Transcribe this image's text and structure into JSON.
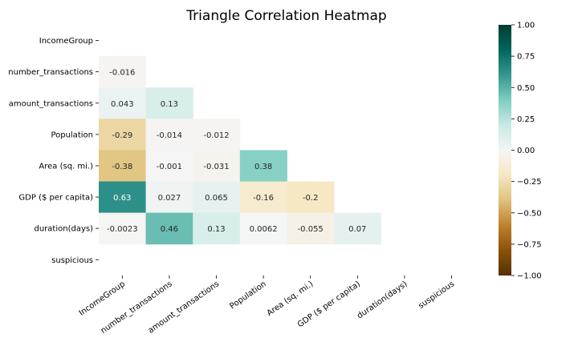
{
  "chart_data": {
    "type": "heatmap",
    "title": "Triangle Correlation Heatmap",
    "rows": [
      "IncomeGroup",
      "number_transactions",
      "amount_transactions",
      "Population",
      "Area (sq. mi.)",
      "GDP ($ per capita)",
      "duration(days)",
      "suspicious"
    ],
    "columns": [
      "IncomeGroup",
      "number_transactions",
      "amount_transactions",
      "Population",
      "Area (sq. mi.)",
      "GDP ($ per capita)",
      "duration(days)",
      "suspicious"
    ],
    "values": [
      [
        null,
        null,
        null,
        null,
        null,
        null,
        null,
        null
      ],
      [
        -0.016,
        null,
        null,
        null,
        null,
        null,
        null,
        null
      ],
      [
        0.043,
        0.13,
        null,
        null,
        null,
        null,
        null,
        null
      ],
      [
        -0.29,
        -0.014,
        -0.012,
        null,
        null,
        null,
        null,
        null
      ],
      [
        -0.38,
        -0.001,
        -0.031,
        0.38,
        null,
        null,
        null,
        null
      ],
      [
        0.63,
        0.027,
        0.065,
        -0.16,
        -0.2,
        null,
        null,
        null
      ],
      [
        -0.0023,
        0.46,
        0.13,
        0.0062,
        -0.055,
        0.07,
        null,
        null
      ],
      [
        null,
        null,
        null,
        null,
        null,
        null,
        null,
        null
      ]
    ],
    "cell_labels": [
      [
        null,
        null,
        null,
        null,
        null,
        null,
        null,
        null
      ],
      [
        "-0.016",
        null,
        null,
        null,
        null,
        null,
        null,
        null
      ],
      [
        "0.043",
        "0.13",
        null,
        null,
        null,
        null,
        null,
        null
      ],
      [
        "-0.29",
        "-0.014",
        "-0.012",
        null,
        null,
        null,
        null,
        null
      ],
      [
        "-0.38",
        "-0.001",
        "-0.031",
        "0.38",
        null,
        null,
        null,
        null
      ],
      [
        "0.63",
        "0.027",
        "0.065",
        "-0.16",
        "-0.2",
        null,
        null,
        null
      ],
      [
        "-0.0023",
        "0.46",
        "0.13",
        "0.0062",
        "-0.055",
        "0.07",
        null,
        null
      ],
      [
        null,
        null,
        null,
        null,
        null,
        null,
        null,
        null
      ]
    ],
    "colorbar": {
      "vmin": -1.0,
      "vmax": 1.0,
      "ticks": [
        "1.00",
        "0.75",
        "0.50",
        "0.25",
        "0.00",
        "−0.25",
        "−0.50",
        "−0.75",
        "−1.00"
      ],
      "tick_values": [
        1.0,
        0.75,
        0.5,
        0.25,
        0.0,
        -0.25,
        -0.5,
        -0.75,
        -1.0
      ],
      "colormap": "BrBG",
      "stops": [
        "#543005",
        "#8c510a",
        "#bf812d",
        "#dfc27d",
        "#f6e8c3",
        "#f5f5f5",
        "#c7eae5",
        "#80cdc1",
        "#35978f",
        "#01665e",
        "#003c30"
      ]
    },
    "mask": "upper-triangle",
    "grid": false
  }
}
